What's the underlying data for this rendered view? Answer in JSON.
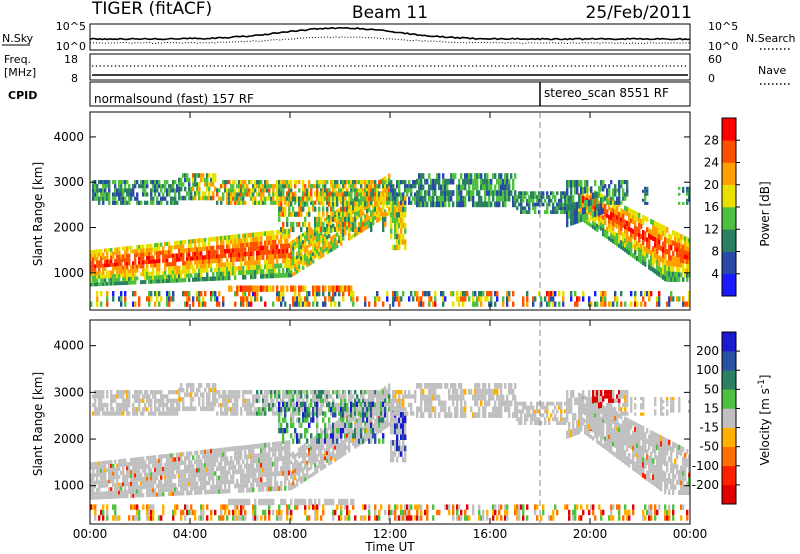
{
  "header": {
    "station": "TIGER (fitACF)",
    "beam": "Beam 11",
    "date": "25/Feb/2011"
  },
  "noise_panel": {
    "left_label": "N.Sky",
    "right_label": "N.Search",
    "left_ticks": [
      "10^5",
      "10^0"
    ],
    "right_ticks": [
      "10^5",
      "10^0"
    ]
  },
  "freq_panel": {
    "left_label_1": "Freq.",
    "left_label_2": "[MHz]",
    "right_label": "Nave",
    "left_ticks": [
      "18",
      "8"
    ],
    "right_ticks": [
      "60",
      "0"
    ]
  },
  "cpid_panel": {
    "label": "CPID",
    "mode_1": "normalsound (fast) 157 RF",
    "mode_2": "stereo_scan 8551 RF",
    "mode_switch_hour": 18
  },
  "chart_data": [
    {
      "type": "heatmap",
      "name": "Power",
      "ylabel": "Slant Range [km]",
      "xlabel": "Time UT",
      "x_ticks": [
        "00:00",
        "04:00",
        "08:00",
        "12:00",
        "16:00",
        "20:00",
        "00:00"
      ],
      "x_range_hours": [
        0,
        24
      ],
      "y_ticks": [
        1000,
        2000,
        3000,
        4000
      ],
      "ylim": [
        180,
        4550
      ],
      "colorbar_label": "Power [dB]",
      "colorbar_ticks": [
        4,
        8,
        12,
        16,
        20,
        24,
        28
      ],
      "colorbar_range": [
        0,
        32
      ],
      "colors": [
        "#1a1aff",
        "#2a4aa8",
        "#2a8060",
        "#50c040",
        "#e8e000",
        "#ffa000",
        "#ff5000",
        "#ff0000"
      ]
    },
    {
      "type": "heatmap",
      "name": "Velocity",
      "ylabel": "Slant Range [km]",
      "xlabel": "Time UT",
      "x_ticks": [
        "00:00",
        "04:00",
        "08:00",
        "12:00",
        "16:00",
        "20:00",
        "00:00"
      ],
      "x_range_hours": [
        0,
        24
      ],
      "y_ticks": [
        1000,
        2000,
        3000,
        4000
      ],
      "ylim": [
        180,
        4550
      ],
      "colorbar_label": "Velocity [m s",
      "colorbar_label_exp": "-1",
      "colorbar_label_close": "]",
      "colorbar_ticks": [
        200,
        100,
        50,
        15,
        -15,
        -50,
        -100,
        -200
      ],
      "colors": [
        "#1a1ad0",
        "#2a50a0",
        "#2a8060",
        "#50c040",
        "#c0c0c0",
        "#ffb000",
        "#ff7000",
        "#ff2000",
        "#e00000"
      ]
    }
  ],
  "x_axis": {
    "label": "Time UT",
    "ticks": [
      "00:00",
      "04:00",
      "08:00",
      "12:00",
      "16:00",
      "20:00",
      "00:00"
    ]
  }
}
